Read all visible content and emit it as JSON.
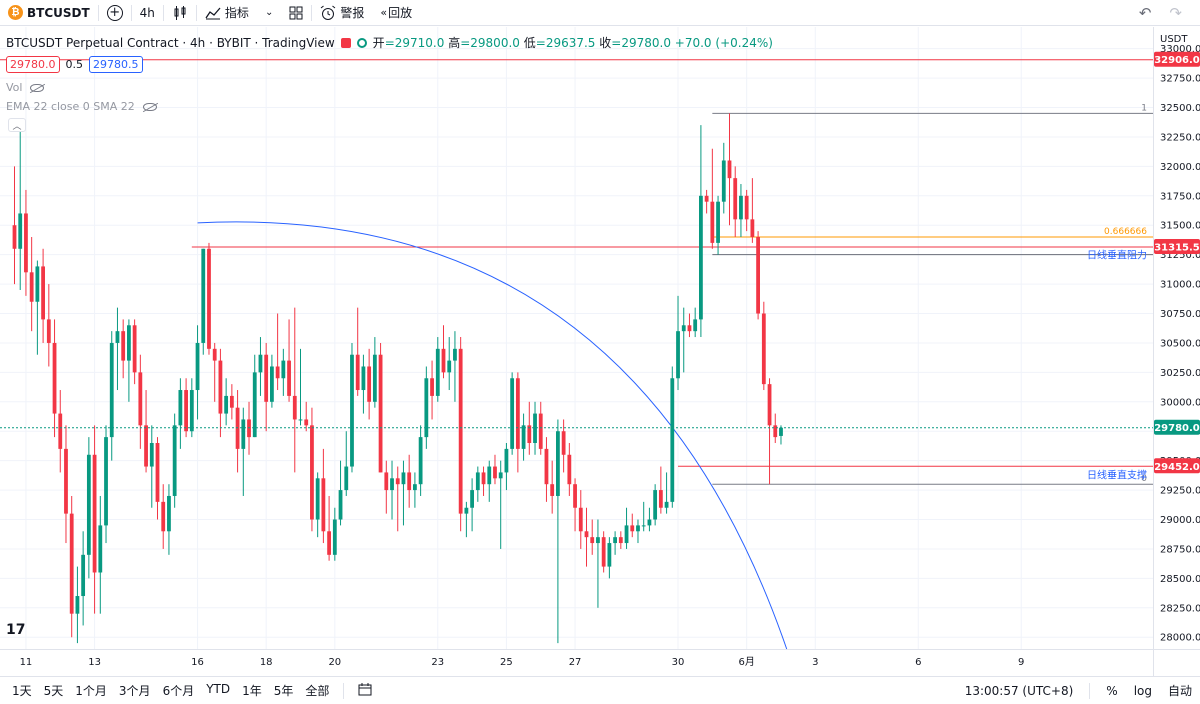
{
  "toolbar": {
    "symbol": "BTCUSDT",
    "interval": "4h",
    "indicators_label": "指标",
    "alert_label": "警报",
    "replay_label": "回放"
  },
  "legend": {
    "title": "BTCUSDT Perpetual Contract · 4h · BYBIT · TradingView",
    "open_label": "开",
    "open": "29710.0",
    "high_label": "高",
    "high": "29800.0",
    "low_label": "低",
    "low": "29637.5",
    "close_label": "收",
    "close": "29780.0",
    "change": "+70.0 (+0.24%)",
    "bid": "29780.0",
    "spread": "0.5",
    "ask": "29780.5",
    "vol_label": "Vol",
    "ema_label": "EMA 22 close 0 SMA 22"
  },
  "chart_data": {
    "type": "candlestick",
    "symbol": "BTCUSDT",
    "interval": "4h",
    "currency": "USDT",
    "ylim": [
      27900,
      33150
    ],
    "yticks": [
      28000,
      28250,
      28500,
      28750,
      29000,
      29250,
      29500,
      29750,
      30000,
      30250,
      30500,
      30750,
      31000,
      31250,
      31500,
      31750,
      32000,
      32250,
      32500,
      32750,
      33000
    ],
    "xticks": [
      {
        "label": "11",
        "idx": 2
      },
      {
        "label": "13",
        "idx": 14
      },
      {
        "label": "16",
        "idx": 32
      },
      {
        "label": "18",
        "idx": 44
      },
      {
        "label": "20",
        "idx": 56
      },
      {
        "label": "23",
        "idx": 74
      },
      {
        "label": "25",
        "idx": 86
      },
      {
        "label": "27",
        "idx": 98
      },
      {
        "label": "30",
        "idx": 116
      },
      {
        "label": "6月",
        "idx": 128
      },
      {
        "label": "3",
        "idx": 140
      },
      {
        "label": "6",
        "idx": 158
      },
      {
        "label": "9",
        "idx": 176
      }
    ],
    "candles": [
      {
        "o": 31500,
        "h": 32000,
        "l": 31000,
        "c": 31300
      },
      {
        "o": 31300,
        "h": 32350,
        "l": 30950,
        "c": 31600
      },
      {
        "o": 31600,
        "h": 31800,
        "l": 30900,
        "c": 31100
      },
      {
        "o": 31100,
        "h": 31400,
        "l": 30600,
        "c": 30850
      },
      {
        "o": 30850,
        "h": 31200,
        "l": 30400,
        "c": 31150
      },
      {
        "o": 31150,
        "h": 31300,
        "l": 30500,
        "c": 30700
      },
      {
        "o": 30700,
        "h": 31000,
        "l": 30300,
        "c": 30500
      },
      {
        "o": 30500,
        "h": 30700,
        "l": 29700,
        "c": 29900
      },
      {
        "o": 29900,
        "h": 30100,
        "l": 29400,
        "c": 29600
      },
      {
        "o": 29600,
        "h": 29800,
        "l": 28800,
        "c": 29050
      },
      {
        "o": 29050,
        "h": 29200,
        "l": 28000,
        "c": 28200
      },
      {
        "o": 28200,
        "h": 28600,
        "l": 27950,
        "c": 28350
      },
      {
        "o": 28350,
        "h": 28900,
        "l": 28100,
        "c": 28700
      },
      {
        "o": 28700,
        "h": 29700,
        "l": 28500,
        "c": 29550
      },
      {
        "o": 29550,
        "h": 29800,
        "l": 28200,
        "c": 28550
      },
      {
        "o": 28550,
        "h": 29200,
        "l": 28200,
        "c": 28950
      },
      {
        "o": 28950,
        "h": 29800,
        "l": 28800,
        "c": 29700
      },
      {
        "o": 29700,
        "h": 30600,
        "l": 29500,
        "c": 30500
      },
      {
        "o": 30500,
        "h": 30800,
        "l": 30100,
        "c": 30600
      },
      {
        "o": 30600,
        "h": 30700,
        "l": 30200,
        "c": 30350
      },
      {
        "o": 30350,
        "h": 30700,
        "l": 30000,
        "c": 30650
      },
      {
        "o": 30650,
        "h": 30700,
        "l": 30150,
        "c": 30250
      },
      {
        "o": 30250,
        "h": 30400,
        "l": 29600,
        "c": 29800
      },
      {
        "o": 29800,
        "h": 30100,
        "l": 29400,
        "c": 29450
      },
      {
        "o": 29450,
        "h": 29800,
        "l": 29100,
        "c": 29650
      },
      {
        "o": 29650,
        "h": 29700,
        "l": 29000,
        "c": 29150
      },
      {
        "o": 29150,
        "h": 29300,
        "l": 28750,
        "c": 28900
      },
      {
        "o": 28900,
        "h": 29300,
        "l": 28700,
        "c": 29200
      },
      {
        "o": 29200,
        "h": 29900,
        "l": 29100,
        "c": 29800
      },
      {
        "o": 29800,
        "h": 30200,
        "l": 29600,
        "c": 30100
      },
      {
        "o": 30100,
        "h": 30200,
        "l": 29700,
        "c": 29750
      },
      {
        "o": 29750,
        "h": 30200,
        "l": 29700,
        "c": 30100
      },
      {
        "o": 30100,
        "h": 30650,
        "l": 29850,
        "c": 30500
      },
      {
        "o": 30500,
        "h": 31300,
        "l": 30400,
        "c": 31300
      },
      {
        "o": 31300,
        "h": 31350,
        "l": 30400,
        "c": 30450
      },
      {
        "o": 30450,
        "h": 30500,
        "l": 30000,
        "c": 30350
      },
      {
        "o": 30350,
        "h": 30450,
        "l": 29700,
        "c": 29900
      },
      {
        "o": 29900,
        "h": 30200,
        "l": 29800,
        "c": 30050
      },
      {
        "o": 30050,
        "h": 30150,
        "l": 29850,
        "c": 29950
      },
      {
        "o": 29950,
        "h": 30100,
        "l": 29400,
        "c": 29600
      },
      {
        "o": 29600,
        "h": 29950,
        "l": 29200,
        "c": 29850
      },
      {
        "o": 29850,
        "h": 30000,
        "l": 29550,
        "c": 29700
      },
      {
        "o": 29700,
        "h": 30400,
        "l": 29700,
        "c": 30250
      },
      {
        "o": 30250,
        "h": 30550,
        "l": 30050,
        "c": 30400
      },
      {
        "o": 30400,
        "h": 30500,
        "l": 29750,
        "c": 30000
      },
      {
        "o": 30000,
        "h": 30400,
        "l": 29950,
        "c": 30300
      },
      {
        "o": 30300,
        "h": 30750,
        "l": 30100,
        "c": 30200
      },
      {
        "o": 30200,
        "h": 30450,
        "l": 30050,
        "c": 30350
      },
      {
        "o": 30350,
        "h": 30700,
        "l": 30000,
        "c": 30050
      },
      {
        "o": 30050,
        "h": 30800,
        "l": 29400,
        "c": 29850
      },
      {
        "o": 29850,
        "h": 30450,
        "l": 29800,
        "c": 29850
      },
      {
        "o": 29850,
        "h": 30000,
        "l": 29750,
        "c": 29800
      },
      {
        "o": 29800,
        "h": 29950,
        "l": 28900,
        "c": 29000
      },
      {
        "o": 29000,
        "h": 29400,
        "l": 28850,
        "c": 29350
      },
      {
        "o": 29350,
        "h": 29600,
        "l": 28800,
        "c": 28900
      },
      {
        "o": 28900,
        "h": 29200,
        "l": 28650,
        "c": 28700
      },
      {
        "o": 28700,
        "h": 29100,
        "l": 28650,
        "c": 29000
      },
      {
        "o": 29000,
        "h": 29500,
        "l": 28950,
        "c": 29250
      },
      {
        "o": 29250,
        "h": 29750,
        "l": 29200,
        "c": 29450
      },
      {
        "o": 29450,
        "h": 30500,
        "l": 29400,
        "c": 30400
      },
      {
        "o": 30400,
        "h": 30800,
        "l": 30050,
        "c": 30100
      },
      {
        "o": 30100,
        "h": 30400,
        "l": 29900,
        "c": 30300
      },
      {
        "o": 30300,
        "h": 30450,
        "l": 29850,
        "c": 30000
      },
      {
        "o": 30000,
        "h": 30550,
        "l": 29950,
        "c": 30400
      },
      {
        "o": 30400,
        "h": 30500,
        "l": 29400,
        "c": 29400
      },
      {
        "o": 29400,
        "h": 29500,
        "l": 29050,
        "c": 29250
      },
      {
        "o": 29250,
        "h": 29500,
        "l": 29000,
        "c": 29350
      },
      {
        "o": 29350,
        "h": 29450,
        "l": 28900,
        "c": 29300
      },
      {
        "o": 29300,
        "h": 29500,
        "l": 28950,
        "c": 29400
      },
      {
        "o": 29400,
        "h": 29550,
        "l": 29100,
        "c": 29250
      },
      {
        "o": 29250,
        "h": 29400,
        "l": 29100,
        "c": 29300
      },
      {
        "o": 29300,
        "h": 29800,
        "l": 29200,
        "c": 29700
      },
      {
        "o": 29700,
        "h": 30300,
        "l": 29600,
        "c": 30200
      },
      {
        "o": 30200,
        "h": 30350,
        "l": 29850,
        "c": 30050
      },
      {
        "o": 30050,
        "h": 30550,
        "l": 30000,
        "c": 30450
      },
      {
        "o": 30450,
        "h": 30650,
        "l": 30200,
        "c": 30250
      },
      {
        "o": 30250,
        "h": 30550,
        "l": 30100,
        "c": 30350
      },
      {
        "o": 30350,
        "h": 30600,
        "l": 30000,
        "c": 30450
      },
      {
        "o": 30450,
        "h": 30550,
        "l": 28900,
        "c": 29050
      },
      {
        "o": 29050,
        "h": 29150,
        "l": 28850,
        "c": 29100
      },
      {
        "o": 29100,
        "h": 29350,
        "l": 28900,
        "c": 29250
      },
      {
        "o": 29250,
        "h": 29450,
        "l": 29150,
        "c": 29400
      },
      {
        "o": 29400,
        "h": 29450,
        "l": 29200,
        "c": 29300
      },
      {
        "o": 29300,
        "h": 29500,
        "l": 29150,
        "c": 29450
      },
      {
        "o": 29450,
        "h": 29550,
        "l": 29300,
        "c": 29350
      },
      {
        "o": 29350,
        "h": 29500,
        "l": 28750,
        "c": 29400
      },
      {
        "o": 29400,
        "h": 29650,
        "l": 29250,
        "c": 29600
      },
      {
        "o": 29600,
        "h": 30250,
        "l": 29550,
        "c": 30200
      },
      {
        "o": 30200,
        "h": 30250,
        "l": 29400,
        "c": 29600
      },
      {
        "o": 29600,
        "h": 29900,
        "l": 29500,
        "c": 29800
      },
      {
        "o": 29800,
        "h": 30000,
        "l": 29550,
        "c": 29650
      },
      {
        "o": 29650,
        "h": 30000,
        "l": 29550,
        "c": 29900
      },
      {
        "o": 29900,
        "h": 30000,
        "l": 29550,
        "c": 29600
      },
      {
        "o": 29600,
        "h": 29700,
        "l": 29150,
        "c": 29300
      },
      {
        "o": 29300,
        "h": 29500,
        "l": 29050,
        "c": 29200
      },
      {
        "o": 29200,
        "h": 29850,
        "l": 27950,
        "c": 29750
      },
      {
        "o": 29750,
        "h": 29850,
        "l": 29400,
        "c": 29550
      },
      {
        "o": 29550,
        "h": 29650,
        "l": 29200,
        "c": 29300
      },
      {
        "o": 29300,
        "h": 29350,
        "l": 28900,
        "c": 29100
      },
      {
        "o": 29100,
        "h": 29250,
        "l": 28750,
        "c": 28900
      },
      {
        "o": 28900,
        "h": 29100,
        "l": 28600,
        "c": 28850
      },
      {
        "o": 28850,
        "h": 29000,
        "l": 28700,
        "c": 28800
      },
      {
        "o": 28800,
        "h": 29000,
        "l": 28250,
        "c": 28850
      },
      {
        "o": 28850,
        "h": 28900,
        "l": 28550,
        "c": 28600
      },
      {
        "o": 28600,
        "h": 28850,
        "l": 28500,
        "c": 28800
      },
      {
        "o": 28800,
        "h": 28900,
        "l": 28700,
        "c": 28850
      },
      {
        "o": 28850,
        "h": 28900,
        "l": 28750,
        "c": 28800
      },
      {
        "o": 28800,
        "h": 29100,
        "l": 28750,
        "c": 28950
      },
      {
        "o": 28950,
        "h": 29050,
        "l": 28850,
        "c": 28900
      },
      {
        "o": 28900,
        "h": 29000,
        "l": 28800,
        "c": 28950
      },
      {
        "o": 28950,
        "h": 29150,
        "l": 28900,
        "c": 28950
      },
      {
        "o": 28950,
        "h": 29100,
        "l": 28900,
        "c": 29000
      },
      {
        "o": 29000,
        "h": 29300,
        "l": 28950,
        "c": 29250
      },
      {
        "o": 29250,
        "h": 29450,
        "l": 29050,
        "c": 29100
      },
      {
        "o": 29100,
        "h": 29400,
        "l": 29050,
        "c": 29150
      },
      {
        "o": 29150,
        "h": 30300,
        "l": 29100,
        "c": 30200
      },
      {
        "o": 30200,
        "h": 30900,
        "l": 30100,
        "c": 30600
      },
      {
        "o": 30600,
        "h": 30800,
        "l": 30250,
        "c": 30650
      },
      {
        "o": 30650,
        "h": 30750,
        "l": 30550,
        "c": 30600
      },
      {
        "o": 30600,
        "h": 30800,
        "l": 30550,
        "c": 30700
      },
      {
        "o": 30700,
        "h": 32350,
        "l": 30550,
        "c": 31750
      },
      {
        "o": 31750,
        "h": 31800,
        "l": 31600,
        "c": 31700
      },
      {
        "o": 31700,
        "h": 32150,
        "l": 31300,
        "c": 31350
      },
      {
        "o": 31350,
        "h": 31750,
        "l": 31250,
        "c": 31700
      },
      {
        "o": 31700,
        "h": 32200,
        "l": 31600,
        "c": 32050
      },
      {
        "o": 32050,
        "h": 32450,
        "l": 31500,
        "c": 31900
      },
      {
        "o": 31900,
        "h": 32000,
        "l": 31400,
        "c": 31550
      },
      {
        "o": 31550,
        "h": 31850,
        "l": 31400,
        "c": 31750
      },
      {
        "o": 31750,
        "h": 31800,
        "l": 31450,
        "c": 31550
      },
      {
        "o": 31550,
        "h": 31900,
        "l": 31350,
        "c": 31400
      },
      {
        "o": 31400,
        "h": 31450,
        "l": 30700,
        "c": 30750
      },
      {
        "o": 30750,
        "h": 30850,
        "l": 30100,
        "c": 30150
      },
      {
        "o": 30150,
        "h": 30200,
        "l": 29300,
        "c": 29800
      },
      {
        "o": 29800,
        "h": 29900,
        "l": 29650,
        "c": 29700
      },
      {
        "o": 29710,
        "h": 29800,
        "l": 29637.5,
        "c": 29780
      }
    ],
    "horizontal_lines": [
      {
        "price": 32906,
        "color": "#f23645",
        "label": "32906.0"
      },
      {
        "price": 31315.5,
        "color": "#f23645",
        "label": "31315.5"
      },
      {
        "price": 29452,
        "color": "#f23645",
        "label": "29452.0"
      }
    ],
    "fib": {
      "high": 32450,
      "low": 29300,
      "levels": [
        {
          "ratio": "1"
        },
        {
          "ratio": "0.666666"
        },
        {
          "ratio": "0"
        }
      ]
    },
    "annotations": [
      {
        "text": "日线垂直阻力",
        "color": "#2962ff"
      },
      {
        "text": "日线垂直支撑",
        "color": "#2962ff"
      }
    ],
    "current_price": 29780,
    "current_label": "29780.0"
  },
  "bottombar": {
    "ranges": [
      "1天",
      "5天",
      "1个月",
      "3个月",
      "6个月",
      "YTD",
      "1年",
      "5年",
      "全部"
    ],
    "time": "13:00:57 (UTC+8)",
    "percent_label": "%",
    "log_label": "log",
    "auto_label": "自动"
  },
  "colors": {
    "up": "#089981",
    "down": "#f23645",
    "grid": "#f0f3fa",
    "fib_mid": "#ff9800",
    "curve": "#2962ff"
  },
  "tv_logo": "17"
}
